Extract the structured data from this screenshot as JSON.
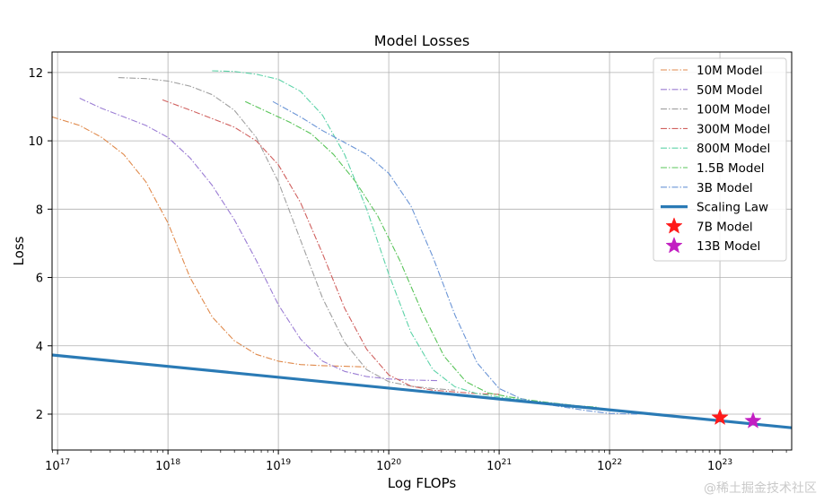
{
  "chart_data": {
    "type": "line",
    "title": "Model Losses",
    "xlabel": "Log FLOPs",
    "ylabel": "Loss",
    "xscale": "log",
    "xlim_log10": [
      16.95,
      23.65
    ],
    "ylim": [
      0.95,
      12.6
    ],
    "grid": true,
    "legend_position": "top-right",
    "x_ticks": [
      {
        "exp": 17,
        "label": "10",
        "sup": "17"
      },
      {
        "exp": 18,
        "label": "10",
        "sup": "18"
      },
      {
        "exp": 19,
        "label": "10",
        "sup": "19"
      },
      {
        "exp": 20,
        "label": "10",
        "sup": "20"
      },
      {
        "exp": 21,
        "label": "10",
        "sup": "21"
      },
      {
        "exp": 22,
        "label": "10",
        "sup": "22"
      },
      {
        "exp": 23,
        "label": "10",
        "sup": "23"
      }
    ],
    "y_ticks": [
      2,
      4,
      6,
      8,
      10,
      12
    ],
    "series": [
      {
        "name": "10M Model",
        "color": "#e08a4c",
        "style": "dashdot",
        "log10_x": [
          16.95,
          17.2,
          17.4,
          17.6,
          17.8,
          18.0,
          18.2,
          18.4,
          18.6,
          18.8,
          19.0,
          19.2,
          19.4,
          19.6,
          19.8
        ],
        "y": [
          10.7,
          10.45,
          10.1,
          9.6,
          8.8,
          7.6,
          6.0,
          4.85,
          4.15,
          3.75,
          3.55,
          3.45,
          3.42,
          3.4,
          3.38
        ]
      },
      {
        "name": "50M Model",
        "color": "#9b7dd4",
        "style": "dashdot",
        "log10_x": [
          17.2,
          17.4,
          17.6,
          17.8,
          18.0,
          18.2,
          18.4,
          18.6,
          18.8,
          19.0,
          19.2,
          19.4,
          19.6,
          19.8,
          20.0,
          20.2,
          20.45
        ],
        "y": [
          11.25,
          10.95,
          10.7,
          10.45,
          10.1,
          9.5,
          8.7,
          7.7,
          6.5,
          5.2,
          4.2,
          3.55,
          3.25,
          3.1,
          3.03,
          3.0,
          2.98
        ]
      },
      {
        "name": "100M Model",
        "color": "#a0a0a0",
        "style": "dashdot",
        "log10_x": [
          17.55,
          17.8,
          18.0,
          18.2,
          18.4,
          18.6,
          18.8,
          19.0,
          19.2,
          19.4,
          19.6,
          19.8,
          20.0,
          20.2,
          20.4,
          20.6
        ],
        "y": [
          11.85,
          11.82,
          11.75,
          11.6,
          11.35,
          10.9,
          10.1,
          8.8,
          7.1,
          5.4,
          4.1,
          3.3,
          2.95,
          2.82,
          2.75,
          2.7
        ]
      },
      {
        "name": "300M Model",
        "color": "#d0605e",
        "style": "dashdot",
        "log10_x": [
          17.95,
          18.2,
          18.4,
          18.6,
          18.8,
          19.0,
          19.2,
          19.4,
          19.6,
          19.8,
          20.0,
          20.2,
          20.4,
          20.6,
          20.8,
          21.0
        ],
        "y": [
          11.2,
          10.9,
          10.65,
          10.4,
          10.0,
          9.3,
          8.2,
          6.7,
          5.1,
          3.9,
          3.15,
          2.82,
          2.7,
          2.65,
          2.6,
          2.58
        ]
      },
      {
        "name": "800M Model",
        "color": "#5dd3a8",
        "style": "dashdot",
        "log10_x": [
          18.4,
          18.6,
          18.8,
          19.0,
          19.2,
          19.4,
          19.6,
          19.8,
          20.0,
          20.2,
          20.4,
          20.6,
          20.8,
          21.0,
          21.2,
          21.4,
          21.6,
          21.8
        ],
        "y": [
          12.05,
          12.03,
          11.95,
          11.8,
          11.45,
          10.75,
          9.6,
          8.0,
          6.1,
          4.4,
          3.3,
          2.8,
          2.6,
          2.5,
          2.42,
          2.3,
          2.22,
          2.18
        ]
      },
      {
        "name": "1.5B Model",
        "color": "#59c459",
        "style": "dashdot",
        "log10_x": [
          18.7,
          18.9,
          19.1,
          19.3,
          19.5,
          19.7,
          19.9,
          20.1,
          20.3,
          20.5,
          20.7,
          20.9,
          21.1,
          21.3,
          21.5,
          21.7,
          21.9
        ],
        "y": [
          11.15,
          10.85,
          10.55,
          10.2,
          9.6,
          8.8,
          7.8,
          6.5,
          5.0,
          3.7,
          2.95,
          2.62,
          2.5,
          2.4,
          2.32,
          2.25,
          2.2
        ]
      },
      {
        "name": "3B Model",
        "color": "#6b95d6",
        "style": "dashdot",
        "log10_x": [
          18.95,
          19.2,
          19.4,
          19.6,
          19.8,
          20.0,
          20.2,
          20.4,
          20.6,
          20.8,
          21.0,
          21.2,
          21.4,
          21.6,
          21.8,
          22.0,
          22.25
        ],
        "y": [
          11.15,
          10.7,
          10.3,
          9.95,
          9.6,
          9.05,
          8.1,
          6.6,
          4.9,
          3.5,
          2.75,
          2.45,
          2.3,
          2.2,
          2.1,
          2.02,
          2.0
        ]
      },
      {
        "name": "Scaling Law",
        "color": "#2a7ab5",
        "style": "solid",
        "log10_x": [
          16.95,
          23.65
        ],
        "y": [
          3.73,
          1.6
        ]
      }
    ],
    "markers": [
      {
        "name": "7B Model",
        "color": "#ff1a1a",
        "log10_x": 23.0,
        "y": 1.9
      },
      {
        "name": "13B Model",
        "color": "#c21fc2",
        "log10_x": 23.3,
        "y": 1.8
      }
    ]
  },
  "watermark": "@稀土掘金技术社区"
}
